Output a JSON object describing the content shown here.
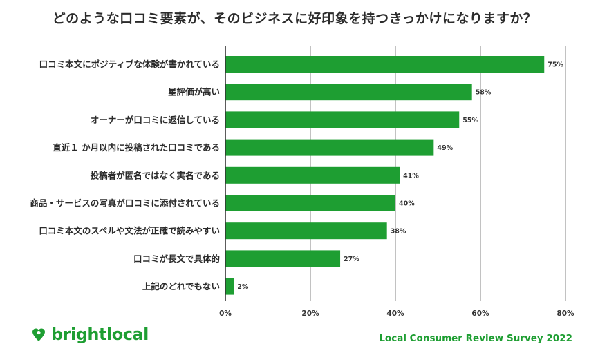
{
  "title": "どのような口コミ要素が、そのビジネスに好印象を持つきっかけになりますか？",
  "brand": {
    "name": "brightlocal",
    "icon": "heart-pin-icon",
    "color": "#1e9e32"
  },
  "footer": {
    "text": "Local Consumer Review Survey 2022"
  },
  "colors": {
    "bar": "#1e9e32",
    "grid": "#9a9a9a",
    "axis": "#333333"
  },
  "chart_data": {
    "type": "bar",
    "orientation": "horizontal",
    "categories": [
      "口コミ本文にポジティブな体験が書かれている",
      "星評価が高い",
      "オーナーが口コミに返信している",
      "直近１ か月以内に投稿された口コミである",
      "投稿者が匿名ではなく実名である",
      "商品・サービスの写真が口コミに添付されている",
      "口コミ本文のスペルや文法が正確で読みやすい",
      "口コミが長文で具体的",
      "上記のどれでもない"
    ],
    "values": [
      75,
      58,
      55,
      49,
      41,
      40,
      38,
      27,
      2
    ],
    "value_labels": [
      "75%",
      "58%",
      "55%",
      "49%",
      "41%",
      "40%",
      "38%",
      "27%",
      "2%"
    ],
    "xlim": [
      0,
      80
    ],
    "xticks": [
      0,
      20,
      40,
      60,
      80
    ],
    "xtick_labels": [
      "0%",
      "20%",
      "40%",
      "60%",
      "80%"
    ],
    "grid": true,
    "legend": "none"
  }
}
